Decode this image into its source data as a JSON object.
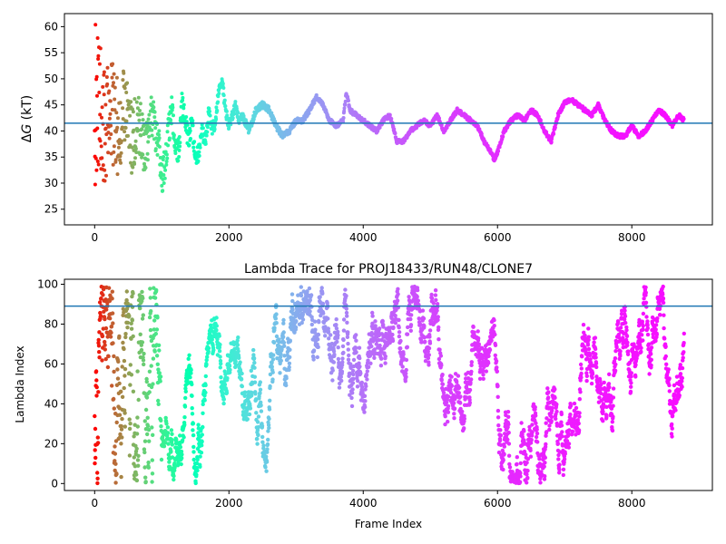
{
  "chart_data": [
    {
      "type": "scatter",
      "title": "",
      "xlabel": "",
      "ylabel": "ΔG (kT)",
      "ylabel_italic_part": "G",
      "xlim": [
        -450,
        9200
      ],
      "ylim": [
        22,
        62.5
      ],
      "xticks": [
        0,
        2000,
        4000,
        6000,
        8000
      ],
      "xtick_labels": [
        "0",
        "2000",
        "4000",
        "6000",
        "8000"
      ],
      "yticks": [
        25,
        30,
        35,
        40,
        45,
        50,
        55,
        60
      ],
      "ytick_labels": [
        "25",
        "30",
        "35",
        "40",
        "45",
        "50",
        "55",
        "60"
      ],
      "hline": 41.5,
      "hline_color": "#1f77b4",
      "colormap": "rainbow",
      "n_frames": 8780,
      "series": [
        {
          "trace_keypoints": [
            [
              0,
              44
            ],
            [
              80,
              48
            ],
            [
              150,
              42
            ],
            [
              250,
              45
            ],
            [
              350,
              40
            ],
            [
              450,
              46
            ],
            [
              550,
              38
            ],
            [
              650,
              42
            ],
            [
              750,
              36
            ],
            [
              850,
              43
            ],
            [
              950,
              38
            ],
            [
              1000,
              30
            ],
            [
              1050,
              34
            ],
            [
              1100,
              40
            ],
            [
              1150,
              44
            ],
            [
              1200,
              38
            ],
            [
              1250,
              36
            ],
            [
              1300,
              45
            ],
            [
              1350,
              42
            ],
            [
              1400,
              38
            ],
            [
              1450,
              42
            ],
            [
              1500,
              34
            ],
            [
              1550,
              36
            ],
            [
              1600,
              40
            ],
            [
              1650,
              38
            ],
            [
              1700,
              44
            ],
            [
              1750,
              40
            ],
            [
              1800,
              42
            ],
            [
              1850,
              48
            ],
            [
              1900,
              49.5
            ],
            [
              1950,
              44
            ],
            [
              2000,
              41
            ],
            [
              2050,
              43
            ],
            [
              2100,
              45
            ],
            [
              2150,
              42
            ],
            [
              2200,
              43
            ],
            [
              2300,
              40
            ],
            [
              2400,
              44
            ],
            [
              2500,
              45
            ],
            [
              2600,
              44
            ],
            [
              2700,
              41
            ],
            [
              2800,
              39
            ],
            [
              2900,
              40
            ],
            [
              3000,
              42
            ],
            [
              3100,
              42
            ],
            [
              3200,
              44
            ],
            [
              3300,
              46.5
            ],
            [
              3400,
              45
            ],
            [
              3500,
              42
            ],
            [
              3600,
              41
            ],
            [
              3700,
              42
            ],
            [
              3750,
              47.5
            ],
            [
              3800,
              44
            ],
            [
              3900,
              43
            ],
            [
              4000,
              42
            ],
            [
              4100,
              41
            ],
            [
              4200,
              40
            ],
            [
              4300,
              42
            ],
            [
              4400,
              43
            ],
            [
              4500,
              38
            ],
            [
              4600,
              38
            ],
            [
              4700,
              40
            ],
            [
              4800,
              41
            ],
            [
              4900,
              42
            ],
            [
              5000,
              41
            ],
            [
              5100,
              43
            ],
            [
              5200,
              40
            ],
            [
              5300,
              42
            ],
            [
              5400,
              44
            ],
            [
              5500,
              43
            ],
            [
              5600,
              42
            ],
            [
              5700,
              41
            ],
            [
              5800,
              38
            ],
            [
              5900,
              36
            ],
            [
              5950,
              34.5
            ],
            [
              6000,
              36
            ],
            [
              6100,
              40
            ],
            [
              6200,
              42
            ],
            [
              6300,
              43
            ],
            [
              6400,
              42
            ],
            [
              6500,
              44
            ],
            [
              6600,
              43
            ],
            [
              6700,
              40
            ],
            [
              6800,
              38
            ],
            [
              6900,
              43
            ],
            [
              7000,
              45.5
            ],
            [
              7100,
              46
            ],
            [
              7200,
              45
            ],
            [
              7300,
              44
            ],
            [
              7400,
              43
            ],
            [
              7500,
              45
            ],
            [
              7600,
              42
            ],
            [
              7700,
              40
            ],
            [
              7800,
              39
            ],
            [
              7900,
              39
            ],
            [
              8000,
              41
            ],
            [
              8100,
              39
            ],
            [
              8200,
              40
            ],
            [
              8300,
              42
            ],
            [
              8400,
              44
            ],
            [
              8500,
              43
            ],
            [
              8600,
              41
            ],
            [
              8700,
              43
            ],
            [
              8780,
              42
            ]
          ]
        }
      ]
    },
    {
      "type": "scatter",
      "title": "Lambda Trace for PROJ18433/RUN48/CLONE7",
      "xlabel": "Frame Index",
      "ylabel": "Lambda Index",
      "xlim": [
        -450,
        9200
      ],
      "ylim": [
        -3.5,
        102.5
      ],
      "xticks": [
        0,
        2000,
        4000,
        6000,
        8000
      ],
      "xtick_labels": [
        "0",
        "2000",
        "4000",
        "6000",
        "8000"
      ],
      "yticks": [
        0,
        20,
        40,
        60,
        80,
        100
      ],
      "ytick_labels": [
        "0",
        "20",
        "40",
        "60",
        "80",
        "100"
      ],
      "hline": 89,
      "hline_color": "#1f77b4",
      "colormap": "rainbow",
      "lambda_range": [
        0,
        99
      ],
      "n_frames": 8780,
      "series": [
        {
          "description_range": "lambda values span 0 to 99 across all frames"
        }
      ]
    }
  ]
}
